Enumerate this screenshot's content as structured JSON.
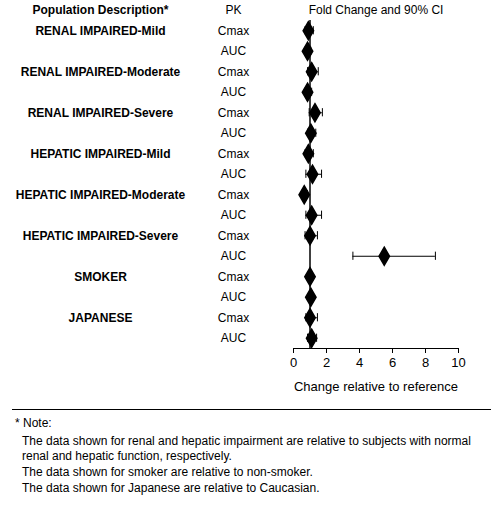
{
  "chart_data": {
    "type": "forest",
    "title": "Fold Change and 90% CI",
    "column_headers": [
      "Population Description*",
      "PK"
    ],
    "xlabel": "Change relative to reference",
    "xlim": [
      0,
      10
    ],
    "xticks": [
      0,
      2,
      4,
      6,
      8,
      10
    ],
    "reference": 1,
    "marker": "diamond",
    "color": "#000000",
    "groups": [
      {
        "name": "RENAL IMPAIRED-Mild",
        "rows": [
          {
            "pk": "Cmax",
            "value": 0.9,
            "ci_low": 0.7,
            "ci_high": 1.2
          },
          {
            "pk": "AUC",
            "value": 0.85,
            "ci_low": 0.7,
            "ci_high": 1.05
          }
        ]
      },
      {
        "name": "RENAL IMPAIRED-Moderate",
        "rows": [
          {
            "pk": "Cmax",
            "value": 1.1,
            "ci_low": 0.85,
            "ci_high": 1.5
          },
          {
            "pk": "AUC",
            "value": 0.85,
            "ci_low": 0.7,
            "ci_high": 1.1
          }
        ]
      },
      {
        "name": "RENAL IMPAIRED-Severe",
        "rows": [
          {
            "pk": "Cmax",
            "value": 1.3,
            "ci_low": 0.95,
            "ci_high": 1.75
          },
          {
            "pk": "AUC",
            "value": 1.05,
            "ci_low": 0.85,
            "ci_high": 1.35
          }
        ]
      },
      {
        "name": "HEPATIC IMPAIRED-Mild",
        "rows": [
          {
            "pk": "Cmax",
            "value": 0.9,
            "ci_low": 0.7,
            "ci_high": 1.2
          },
          {
            "pk": "AUC",
            "value": 1.15,
            "ci_low": 0.75,
            "ci_high": 1.7
          }
        ]
      },
      {
        "name": "HEPATIC IMPAIRED-Moderate",
        "rows": [
          {
            "pk": "Cmax",
            "value": 0.65,
            "ci_low": 0.5,
            "ci_high": 0.85
          },
          {
            "pk": "AUC",
            "value": 1.1,
            "ci_low": 0.75,
            "ci_high": 1.7
          }
        ]
      },
      {
        "name": "HEPATIC IMPAIRED-Severe",
        "rows": [
          {
            "pk": "Cmax",
            "value": 1.0,
            "ci_low": 0.7,
            "ci_high": 1.45
          },
          {
            "pk": "AUC",
            "value": 5.5,
            "ci_low": 3.6,
            "ci_high": 8.6
          }
        ]
      },
      {
        "name": "SMOKER",
        "rows": [
          {
            "pk": "Cmax",
            "value": 1.0,
            "ci_low": 0.9,
            "ci_high": 1.15
          },
          {
            "pk": "AUC",
            "value": 1.05,
            "ci_low": 0.95,
            "ci_high": 1.2
          }
        ]
      },
      {
        "name": "JAPANESE",
        "rows": [
          {
            "pk": "Cmax",
            "value": 1.0,
            "ci_low": 0.75,
            "ci_high": 1.45
          },
          {
            "pk": "AUC",
            "value": 1.1,
            "ci_low": 0.85,
            "ci_high": 1.4
          }
        ]
      }
    ],
    "notes": [
      "* Note:",
      "The data shown for renal and hepatic impairment are relative to subjects with normal renal and hepatic function, respectively.",
      "The data shown for smoker are relative to non-smoker.",
      "The data shown for Japanese are relative to Caucasian."
    ]
  }
}
